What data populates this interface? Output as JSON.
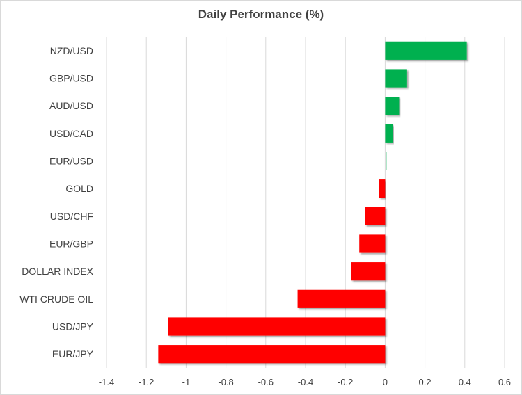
{
  "chart_data": {
    "type": "bar",
    "orientation": "horizontal",
    "title": "Daily Performance  (%)",
    "xlabel": "",
    "ylabel": "",
    "xlim": [
      -1.4,
      0.6
    ],
    "xticks": [
      -1.4,
      -1.2,
      -1,
      -0.8,
      -0.6,
      -0.4,
      -0.2,
      0,
      0.2,
      0.4,
      0.6
    ],
    "xtick_labels": [
      "-1.4",
      "-1.2",
      "-1",
      "-0.8",
      "-0.6",
      "-0.4",
      "-0.2",
      "0",
      "0.2",
      "0.4",
      "0.6"
    ],
    "grid": "vertical",
    "legend": "none",
    "categories": [
      "NZD/USD",
      "GBP/USD",
      "AUD/USD",
      "USD/CAD",
      "EUR/USD",
      "GOLD",
      "USD/CHF",
      "EUR/GBP",
      "DOLLAR INDEX",
      "WTI CRUDE OIL",
      "USD/JPY",
      "EUR/JPY"
    ],
    "values": [
      0.41,
      0.11,
      0.07,
      0.04,
      0.003,
      -0.03,
      -0.1,
      -0.13,
      -0.17,
      -0.44,
      -1.09,
      -1.14
    ],
    "colors": {
      "positive": "#00b050",
      "negative": "#ff0000",
      "grid": "#d9d9d9",
      "text": "#404040"
    }
  }
}
